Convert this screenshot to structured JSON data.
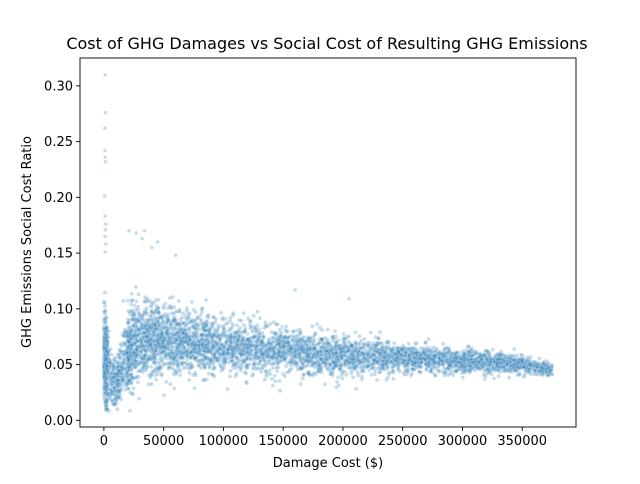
{
  "chart_data": {
    "type": "scatter",
    "title": "Cost of GHG Damages vs Social Cost of Resulting GHG Emissions",
    "xlabel": "Damage Cost ($)",
    "ylabel": "GHG Emissions Social Cost Ratio",
    "xlim": [
      -20000,
      395000
    ],
    "ylim": [
      -0.006,
      0.325
    ],
    "xticks": [
      0,
      50000,
      100000,
      150000,
      200000,
      250000,
      300000,
      350000
    ],
    "xtick_labels": [
      "0",
      "50000",
      "100000",
      "150000",
      "200000",
      "250000",
      "300000",
      "350000"
    ],
    "yticks": [
      0.0,
      0.05,
      0.1,
      0.15,
      0.2,
      0.25,
      0.3
    ],
    "ytick_labels": [
      "0.00",
      "0.05",
      "0.10",
      "0.15",
      "0.20",
      "0.25",
      "0.30"
    ],
    "grid": false,
    "legend": "none",
    "point_color": "#1f77b4",
    "point_alpha": 0.25,
    "density_profile": {
      "description_x": [
        0,
        5000,
        10000,
        20000,
        30000,
        50000,
        100000,
        150000,
        200000,
        250000,
        300000,
        350000,
        375000
      ],
      "y_center": [
        0.06,
        0.04,
        0.035,
        0.06,
        0.075,
        0.072,
        0.066,
        0.062,
        0.058,
        0.056,
        0.053,
        0.05,
        0.045
      ],
      "y_spread": [
        0.05,
        0.03,
        0.02,
        0.035,
        0.035,
        0.03,
        0.024,
        0.02,
        0.017,
        0.013,
        0.01,
        0.008,
        0.005
      ]
    },
    "outliers": [
      {
        "x": 1000,
        "y": 0.31
      },
      {
        "x": 1200,
        "y": 0.276
      },
      {
        "x": 800,
        "y": 0.262
      },
      {
        "x": 900,
        "y": 0.242
      },
      {
        "x": 1100,
        "y": 0.236
      },
      {
        "x": 1300,
        "y": 0.232
      },
      {
        "x": 700,
        "y": 0.201
      },
      {
        "x": 1000,
        "y": 0.183
      },
      {
        "x": 1500,
        "y": 0.176
      },
      {
        "x": 1200,
        "y": 0.171
      },
      {
        "x": 900,
        "y": 0.165
      },
      {
        "x": 1600,
        "y": 0.158
      },
      {
        "x": 1100,
        "y": 0.151
      },
      {
        "x": 27000,
        "y": 0.168
      },
      {
        "x": 21000,
        "y": 0.17
      },
      {
        "x": 34000,
        "y": 0.17
      },
      {
        "x": 32000,
        "y": 0.163
      },
      {
        "x": 40000,
        "y": 0.155
      },
      {
        "x": 45000,
        "y": 0.16
      },
      {
        "x": 60000,
        "y": 0.148
      },
      {
        "x": 375000,
        "y": 0.048
      },
      {
        "x": 370000,
        "y": 0.043
      },
      {
        "x": 356000,
        "y": 0.046
      },
      {
        "x": 205000,
        "y": 0.109
      },
      {
        "x": 160000,
        "y": 0.117
      }
    ]
  }
}
